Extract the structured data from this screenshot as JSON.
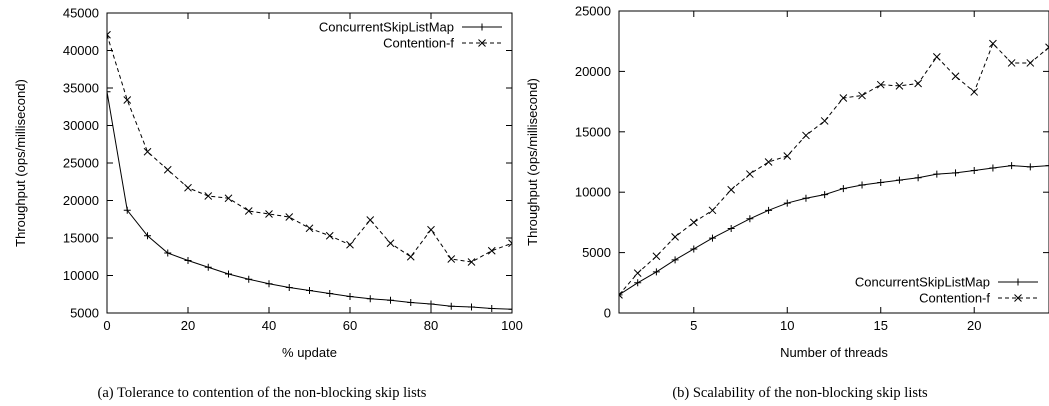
{
  "chart_data": [
    {
      "type": "line",
      "caption": "(a)  Tolerance to contention of the non-blocking skip lists",
      "xlabel": "% update",
      "ylabel": "Throughput (ops/millisecond)",
      "xlim": [
        0,
        100
      ],
      "ylim": [
        5000,
        45000
      ],
      "xticks": [
        0,
        20,
        40,
        60,
        80,
        100
      ],
      "yticks": [
        5000,
        10000,
        15000,
        20000,
        25000,
        30000,
        35000,
        40000,
        45000
      ],
      "legend_position": "top-right",
      "grid": false,
      "x": [
        0,
        5,
        10,
        15,
        20,
        25,
        30,
        35,
        40,
        45,
        50,
        55,
        60,
        65,
        70,
        75,
        80,
        85,
        90,
        95,
        100
      ],
      "series": [
        {
          "name": "ConcurrentSkipListMap",
          "style": "solid",
          "marker": "plus",
          "values": [
            34500,
            18700,
            15300,
            13000,
            12000,
            11100,
            10200,
            9500,
            8900,
            8400,
            8000,
            7600,
            7200,
            6900,
            6700,
            6400,
            6200,
            5900,
            5800,
            5600,
            5500
          ]
        },
        {
          "name": "Contention-f",
          "style": "dashed",
          "marker": "cross",
          "values": [
            42100,
            33400,
            26500,
            24100,
            21700,
            20600,
            20300,
            18600,
            18200,
            17800,
            16300,
            15300,
            14100,
            17400,
            14300,
            12500,
            16100,
            12200,
            11800,
            13300,
            14300
          ]
        }
      ]
    },
    {
      "type": "line",
      "caption": "(b)  Scalability of the non-blocking skip lists",
      "xlabel": "Number of threads",
      "ylabel": "Throughput (ops/millisecond)",
      "xlim": [
        1,
        24
      ],
      "ylim": [
        0,
        25000
      ],
      "xticks": [
        5,
        10,
        15,
        20
      ],
      "yticks": [
        0,
        5000,
        10000,
        15000,
        20000,
        25000
      ],
      "legend_position": "bottom-right",
      "grid": false,
      "x": [
        1,
        2,
        3,
        4,
        5,
        6,
        7,
        8,
        9,
        10,
        11,
        12,
        13,
        14,
        15,
        16,
        17,
        18,
        19,
        20,
        21,
        22,
        23,
        24
      ],
      "series": [
        {
          "name": "ConcurrentSkipListMap",
          "style": "solid",
          "marker": "plus",
          "values": [
            1500,
            2500,
            3400,
            4400,
            5300,
            6200,
            7000,
            7800,
            8500,
            9100,
            9500,
            9800,
            10300,
            10600,
            10800,
            11000,
            11200,
            11500,
            11600,
            11800,
            12000,
            12200,
            12100,
            12200
          ]
        },
        {
          "name": "Contention-f",
          "style": "dashed",
          "marker": "cross",
          "values": [
            1500,
            3300,
            4700,
            6300,
            7500,
            8500,
            10200,
            11500,
            12500,
            13000,
            14700,
            15900,
            17800,
            18000,
            18900,
            18800,
            19000,
            21200,
            19600,
            18300,
            22300,
            20700,
            20700,
            22000
          ]
        }
      ]
    }
  ]
}
